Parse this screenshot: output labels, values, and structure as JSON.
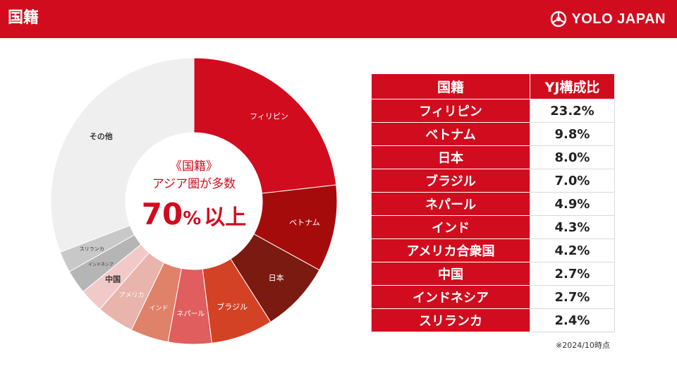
{
  "header": {
    "title": "国籍",
    "logo_text": "YOLO JAPAN",
    "bg_color": "#d10c1e"
  },
  "center": {
    "line1": "《国籍》",
    "line2": "アジア圏が多数",
    "big_number": "70",
    "big_percent": "%",
    "big_suffix": "以上",
    "color": "#d10c1e"
  },
  "chart_data": {
    "type": "pie",
    "categories": [
      "フィリピン",
      "ベトナム",
      "日本",
      "ブラジル",
      "ネパール",
      "インド",
      "アメリカ",
      "中国",
      "インドネシア",
      "スリランカ",
      "その他"
    ],
    "values": [
      23.2,
      9.8,
      8.0,
      7.0,
      4.9,
      4.3,
      4.2,
      2.7,
      2.7,
      2.4,
      30.8
    ],
    "colors": [
      "#d10c1e",
      "#a60b0b",
      "#7b1a10",
      "#d44226",
      "#e05e5e",
      "#e0816a",
      "#e8b4ab",
      "#f2c9c9",
      "#b5b5b5",
      "#c8c8c8",
      "#efefef"
    ],
    "label_colors": [
      "#ffffff",
      "#ffffff",
      "#ffffff",
      "#ffffff",
      "#ffffff",
      "#ffffff",
      "#ffffff",
      "#333333",
      "#333333",
      "#333333",
      "#333333"
    ],
    "donut": true,
    "start": "12 o'clock, clockwise"
  },
  "table": {
    "headers": [
      "国籍",
      "YJ構成比"
    ],
    "rows": [
      {
        "name": "フィリピン",
        "value": "23.2%"
      },
      {
        "name": "ベトナム",
        "value": "9.8%"
      },
      {
        "name": "日本",
        "value": "8.0%"
      },
      {
        "name": "ブラジル",
        "value": "7.0%"
      },
      {
        "name": "ネパール",
        "value": "4.9%"
      },
      {
        "name": "インド",
        "value": "4.3%"
      },
      {
        "name": "アメリカ合衆国",
        "value": "4.2%"
      },
      {
        "name": "中国",
        "value": "2.7%"
      },
      {
        "name": "インドネシア",
        "value": "2.7%"
      },
      {
        "name": "スリランカ",
        "value": "2.4%"
      }
    ]
  },
  "footnote": "※2024/10時点"
}
